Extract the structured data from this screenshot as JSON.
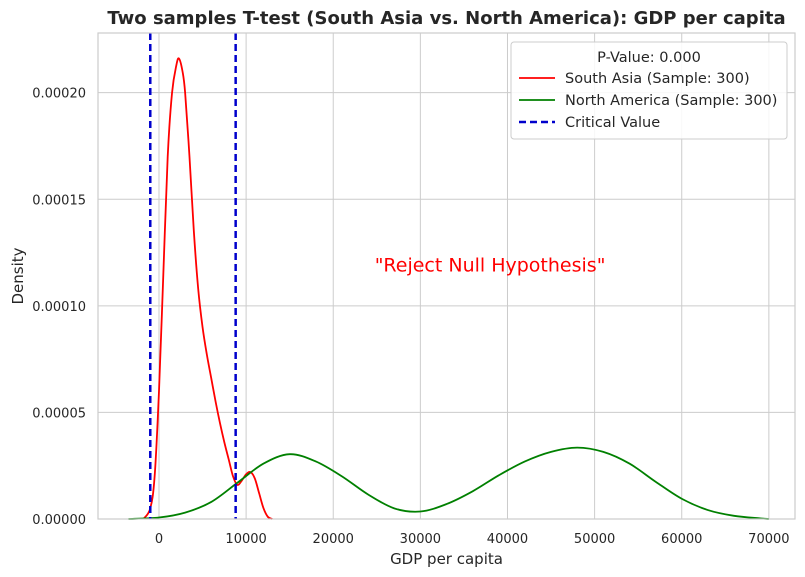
{
  "chart_data": {
    "type": "line",
    "title": "Two samples T-test (South Asia vs. North America): GDP per capita",
    "xlabel": "GDP per capita",
    "ylabel": "Density",
    "xlim": [
      -7000,
      73000
    ],
    "ylim": [
      0,
      0.000228
    ],
    "xticks": [
      0,
      10000,
      20000,
      30000,
      40000,
      50000,
      60000,
      70000
    ],
    "xtick_labels": [
      "0",
      "10000",
      "20000",
      "30000",
      "40000",
      "50000",
      "60000",
      "70000"
    ],
    "yticks": [
      0,
      5e-05,
      0.0001,
      0.00015,
      0.0002
    ],
    "ytick_labels": [
      "0.00000",
      "0.00005",
      "0.00010",
      "0.00015",
      "0.00020"
    ],
    "grid": true,
    "legend": {
      "placement": "top-right",
      "title": "P-Value: 0.000",
      "entries": [
        "South Asia (Sample: 300)",
        "North America (Sample: 300)",
        "Critical Value"
      ]
    },
    "annotation": {
      "text": "\"Reject Null Hypothesis\"",
      "x": 38000,
      "y": 0.000116,
      "color": "#ff0000"
    },
    "series": [
      {
        "name": "South Asia (Sample: 300)",
        "color": "#ff0000",
        "style": "solid",
        "x": [
          -1800,
          -1000,
          -500,
          0,
          500,
          1000,
          1500,
          2000,
          2300,
          2700,
          3000,
          3500,
          4000,
          4500,
          5000,
          5500,
          6000,
          6500,
          7000,
          7500,
          8000,
          8500,
          9000,
          9500,
          10000,
          10500,
          11000,
          11500,
          12000,
          12500,
          13000
        ],
        "y": [
          0,
          5e-06,
          2e-05,
          6e-05,
          0.000115,
          0.00017,
          0.0002,
          0.000213,
          0.000216,
          0.00021,
          0.0002,
          0.00017,
          0.000135,
          0.000108,
          9e-05,
          7.7e-05,
          6.6e-05,
          5.5e-05,
          4.5e-05,
          3.6e-05,
          2.8e-05,
          2e-05,
          1.6e-05,
          1.8e-05,
          2.1e-05,
          2.2e-05,
          1.9e-05,
          1.2e-05,
          5e-06,
          1e-06,
          0
        ]
      },
      {
        "name": "North America (Sample: 300)",
        "color": "#008000",
        "style": "solid",
        "x": [
          -3500,
          0,
          3000,
          6000,
          9000,
          12000,
          15000,
          18000,
          21000,
          24000,
          27000,
          30000,
          33000,
          36000,
          39000,
          42000,
          45000,
          48000,
          51000,
          54000,
          57000,
          60000,
          63000,
          66000,
          69000,
          70000
        ],
        "y": [
          0,
          7e-07,
          3e-06,
          8e-06,
          1.7e-05,
          2.6e-05,
          3.04e-05,
          2.7e-05,
          2e-05,
          1.15e-05,
          5e-06,
          3.5e-06,
          7e-06,
          1.3e-05,
          2.05e-05,
          2.7e-05,
          3.15e-05,
          3.35e-05,
          3.15e-05,
          2.6e-05,
          1.75e-05,
          9.5e-06,
          4.2e-06,
          1.5e-06,
          3e-07,
          0
        ]
      }
    ],
    "critical_values": {
      "color": "#0000cc",
      "style": "dashed",
      "x": [
        -1000,
        8800
      ]
    }
  }
}
